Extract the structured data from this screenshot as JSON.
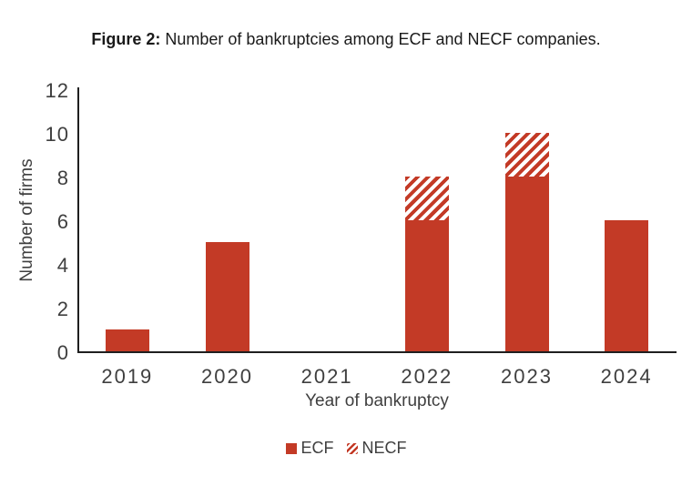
{
  "figure": {
    "title_prefix": "Figure 2:",
    "title_rest": " Number of bankruptcies among ECF and NECF companies."
  },
  "chart_data": {
    "type": "bar",
    "stacked": true,
    "title": "Figure 2: Number of bankruptcies among ECF and NECF companies.",
    "categories": [
      "2019",
      "2020",
      "2021",
      "2022",
      "2023",
      "2024"
    ],
    "series": [
      {
        "name": "ECF",
        "style": "solid",
        "values": [
          1,
          5,
          0,
          6,
          8,
          6
        ]
      },
      {
        "name": "NECF",
        "style": "hatched",
        "values": [
          0,
          0,
          0,
          2,
          2,
          0
        ]
      }
    ],
    "xlabel": "Year of bankruptcy",
    "ylabel": "Number of firms",
    "ylim": [
      0,
      12
    ],
    "yticks": [
      0,
      2,
      4,
      6,
      8,
      10,
      12
    ],
    "grid": false,
    "legend_position": "bottom"
  },
  "colors": {
    "bar_red": "#C33A26",
    "axis_line": "#1F1F1F",
    "tick_text": "#3F3F3F",
    "title_text": "#1A1A1A",
    "background": "#FFFFFF"
  }
}
